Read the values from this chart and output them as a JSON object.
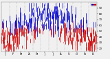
{
  "bg_color": "#f0f0f0",
  "plot_bg": "#f0f0f0",
  "grid_color": "#aaaaaa",
  "bar_color_above": "#0000cc",
  "bar_color_below": "#cc0000",
  "ylim": [
    15,
    100
  ],
  "yticks": [
    20,
    30,
    40,
    50,
    60,
    70,
    80,
    90
  ],
  "n_points": 365,
  "avg_value": 55,
  "seed": 42,
  "legend_blue_label": " ",
  "legend_red_label": " ",
  "title_fontsize": 3.8,
  "tick_fontsize": 2.8,
  "bar_linewidth": 0.55
}
